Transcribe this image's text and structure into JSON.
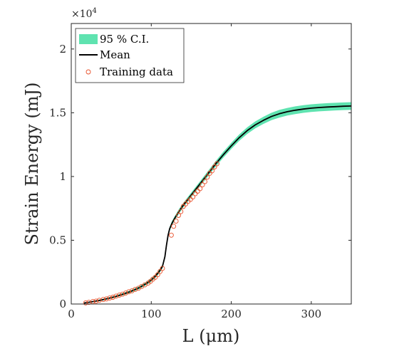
{
  "chart_data": {
    "type": "line",
    "xlabel": "L (μm)",
    "ylabel": "Strain Energy (mJ)",
    "y_exponent_label": "×10",
    "y_exponent_power": "4",
    "xlim": [
      0,
      350
    ],
    "ylim": [
      0,
      22000
    ],
    "x_ticks": [
      0,
      100,
      200,
      300
    ],
    "x_tick_labels": [
      "0",
      "100",
      "200",
      "300"
    ],
    "y_ticks": [
      0,
      5000,
      10000,
      15000,
      20000
    ],
    "y_tick_labels": [
      "0",
      "0.5",
      "1",
      "1.5",
      "2"
    ],
    "grid": false,
    "legend_position": "top-left",
    "legend": {
      "ci_label": "95 % C.I.",
      "mean_label": "Mean",
      "training_label": "Training data"
    },
    "colors": {
      "ci": "#5fe3b0",
      "mean": "#000000",
      "training": "#e8502a"
    },
    "mean": {
      "x": [
        16,
        25,
        35,
        45,
        55,
        65,
        75,
        85,
        95,
        100,
        105,
        110,
        114,
        117,
        119,
        121,
        123,
        126,
        130,
        135,
        140,
        150,
        160,
        170,
        180,
        190,
        200,
        210,
        220,
        230,
        240,
        250,
        260,
        270,
        280,
        290,
        300,
        310,
        320,
        330,
        340,
        350
      ],
      "y": [
        80,
        170,
        280,
        420,
        580,
        780,
        1000,
        1280,
        1650,
        1880,
        2180,
        2550,
        2950,
        3700,
        4600,
        5400,
        5900,
        6350,
        6800,
        7300,
        7750,
        8550,
        9350,
        10150,
        10950,
        11700,
        12400,
        13050,
        13600,
        14050,
        14400,
        14700,
        14920,
        15080,
        15200,
        15290,
        15360,
        15410,
        15450,
        15480,
        15510,
        15530
      ]
    },
    "ci_halfwidth": [
      40,
      50,
      60,
      70,
      80,
      90,
      100,
      110,
      120,
      130,
      140,
      150,
      160,
      160,
      160,
      160,
      160,
      170,
      170,
      180,
      180,
      190,
      200,
      210,
      220,
      230,
      240,
      250,
      260,
      270,
      280,
      290,
      300,
      300,
      300,
      300,
      300,
      300,
      300,
      300,
      300,
      300
    ],
    "training": {
      "x": [
        18,
        22,
        27,
        31,
        35,
        40,
        44,
        48,
        52,
        56,
        60,
        64,
        68,
        72,
        76,
        80,
        84,
        88,
        92,
        96,
        99,
        102,
        105,
        108,
        111,
        114,
        125,
        128,
        131,
        134,
        137,
        140,
        143,
        146,
        149,
        152,
        155,
        158,
        161,
        164,
        167,
        170,
        173,
        176,
        179,
        182
      ],
      "y": [
        90,
        130,
        190,
        230,
        290,
        350,
        400,
        470,
        530,
        620,
        690,
        770,
        860,
        960,
        1040,
        1150,
        1240,
        1380,
        1500,
        1640,
        1780,
        1950,
        2100,
        2300,
        2550,
        2800,
        5400,
        6100,
        6500,
        6950,
        7250,
        7650,
        7850,
        8050,
        8200,
        8400,
        8650,
        8850,
        9050,
        9350,
        9600,
        9950,
        10250,
        10450,
        10750,
        11000
      ]
    }
  }
}
